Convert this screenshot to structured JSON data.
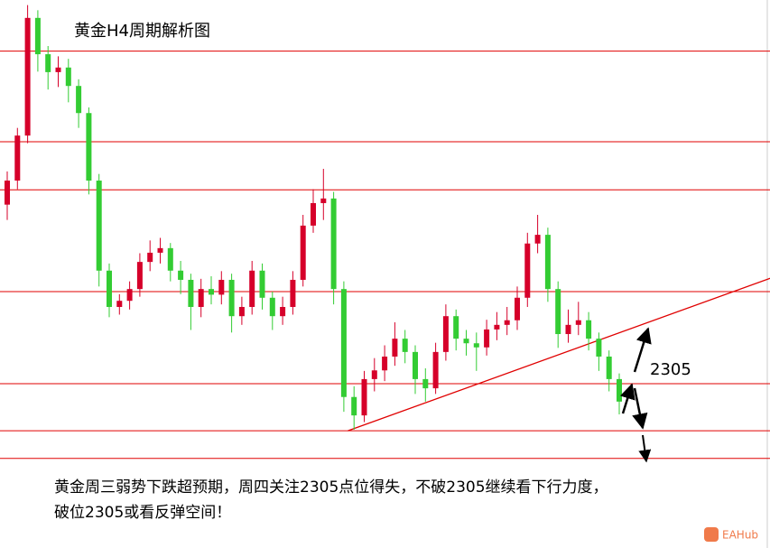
{
  "chart_data": {
    "type": "candlestick",
    "title": "黄金H4周期解析图",
    "ylim": [
      2290,
      2380
    ],
    "up_color": "#d6002a",
    "down_color": "#33cc33",
    "open": [
      2340.0,
      2344.7,
      2353.5,
      2376.5,
      2369.4,
      2365.9,
      2366.8,
      2363.2,
      2357.9,
      2344.7,
      2327.1,
      2320.0,
      2321.2,
      2323.5,
      2328.8,
      2330.6,
      2331.5,
      2327.1,
      2325.3,
      2320.0,
      2323.5,
      2322.4,
      2325.3,
      2318.2,
      2320.0,
      2327.1,
      2321.8,
      2318.2,
      2320.0,
      2325.3,
      2335.9,
      2340.3,
      2341.2,
      2323.5,
      2302.4,
      2298.8,
      2305.9,
      2307.6,
      2310.3,
      2313.8,
      2311.2,
      2305.9,
      2304.1,
      2311.2,
      2318.2,
      2313.8,
      2312.9,
      2312.1,
      2315.6,
      2316.5,
      2317.4,
      2321.8,
      2332.4,
      2334.1,
      2323.5,
      2314.7,
      2316.5,
      2317.4,
      2313.8,
      2310.3,
      2305.9
    ],
    "high": [
      2346.5,
      2355.0,
      2379.0,
      2378.0,
      2371.0,
      2369.0,
      2368.5,
      2364.5,
      2359.0,
      2346.0,
      2328.5,
      2322.5,
      2325.0,
      2330.5,
      2333.0,
      2333.5,
      2332.5,
      2329.0,
      2326.5,
      2325.5,
      2326.0,
      2327.0,
      2326.5,
      2322.0,
      2329.0,
      2328.5,
      2323.0,
      2322.0,
      2327.0,
      2338.0,
      2343.0,
      2347.0,
      2342.5,
      2325.0,
      2304.5,
      2307.5,
      2310.0,
      2312.5,
      2317.0,
      2315.5,
      2312.5,
      2308.0,
      2313.0,
      2320.5,
      2319.5,
      2315.5,
      2315.0,
      2317.5,
      2319.0,
      2320.0,
      2324.0,
      2334.5,
      2338.0,
      2335.5,
      2325.0,
      2319.5,
      2321.0,
      2319.0,
      2315.0,
      2311.5,
      2307.0
    ],
    "low": [
      2337.0,
      2343.0,
      2352.0,
      2366.0,
      2362.5,
      2363.0,
      2360.0,
      2355.0,
      2342.0,
      2324.0,
      2318.0,
      2318.5,
      2319.5,
      2322.0,
      2327.0,
      2328.5,
      2325.0,
      2322.5,
      2315.5,
      2318.0,
      2320.5,
      2320.5,
      2315.0,
      2316.5,
      2318.5,
      2319.5,
      2315.5,
      2316.5,
      2318.5,
      2324.0,
      2334.5,
      2337.0,
      2320.5,
      2299.5,
      2296.0,
      2297.5,
      2303.5,
      2305.5,
      2308.5,
      2309.0,
      2303.0,
      2301.5,
      2303.0,
      2309.5,
      2311.5,
      2310.5,
      2307.5,
      2310.5,
      2313.5,
      2314.5,
      2315.5,
      2320.0,
      2330.5,
      2321.0,
      2312.0,
      2313.0,
      2314.5,
      2311.5,
      2307.5,
      2303.5,
      2299.0
    ],
    "close": [
      2344.7,
      2353.5,
      2376.5,
      2369.4,
      2365.9,
      2366.8,
      2363.2,
      2357.9,
      2344.7,
      2327.1,
      2320.0,
      2321.2,
      2323.5,
      2328.8,
      2330.6,
      2331.5,
      2327.1,
      2325.3,
      2320.0,
      2323.5,
      2322.4,
      2325.3,
      2318.2,
      2320.0,
      2327.1,
      2321.8,
      2318.2,
      2320.0,
      2325.3,
      2335.9,
      2340.3,
      2341.2,
      2323.5,
      2302.4,
      2298.8,
      2305.9,
      2307.6,
      2310.3,
      2313.8,
      2311.2,
      2305.9,
      2304.1,
      2311.2,
      2318.2,
      2313.8,
      2312.9,
      2312.1,
      2315.6,
      2316.5,
      2317.4,
      2321.8,
      2332.4,
      2334.1,
      2323.5,
      2314.7,
      2316.5,
      2317.4,
      2313.8,
      2310.3,
      2305.9,
      2301.5
    ],
    "levels": [
      2370,
      2352.3,
      2342.9,
      2323,
      2305,
      2295.8,
      2290.4
    ],
    "level_color": "#e00000",
    "trendline": {
      "color": "#e00000",
      "x": [
        33.4,
        74.8
      ],
      "y": [
        2295.8,
        2325.6
      ]
    },
    "level_label": "2305",
    "annotation": [
      "黄金周三弱势下跌超预期，周四关注2305点位得失，不破2305继续看下行力度，",
      "破位2305或看反弹空间！"
    ],
    "watermark": "EAHub"
  }
}
